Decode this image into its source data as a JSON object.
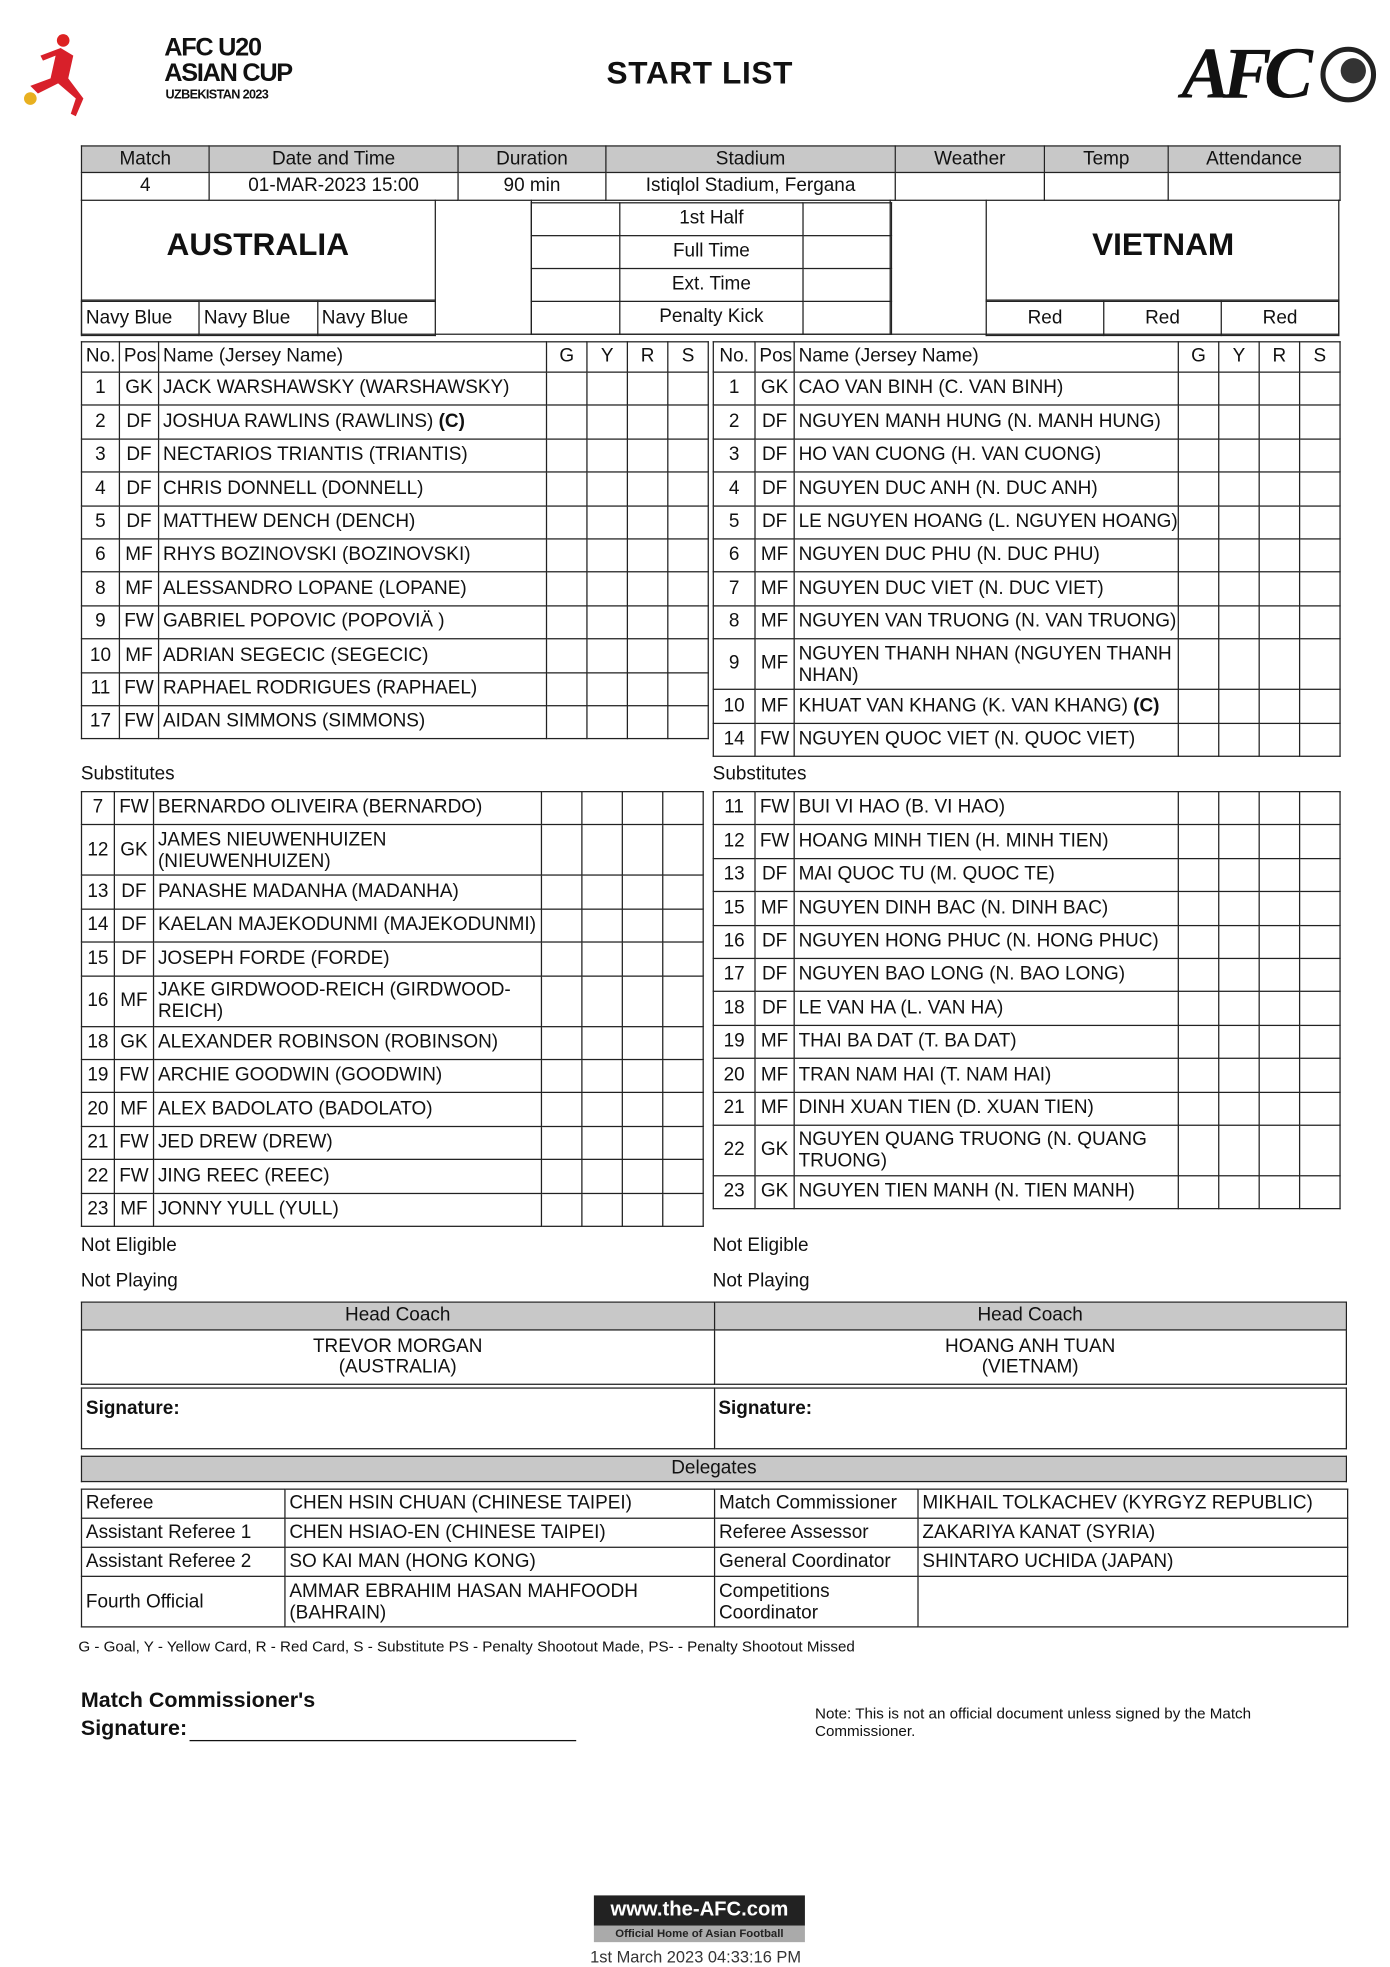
{
  "header": {
    "logo_left": {
      "line1": "AFC U20",
      "line2": "ASIAN CUP",
      "line3": "UZBEKISTAN 2023"
    },
    "title": "START LIST",
    "logo_right": "AFC"
  },
  "match_info": {
    "headers": [
      "Match",
      "Date and Time",
      "Duration",
      "Stadium",
      "Weather",
      "Temp",
      "Attendance"
    ],
    "values": [
      "4",
      "01-MAR-2023 15:00",
      "90 min",
      "Istiqlol Stadium, Fergana",
      "",
      "",
      ""
    ]
  },
  "score": {
    "periods": [
      "1st Half",
      "Full Time",
      "Ext. Time",
      "Penalty Kick"
    ]
  },
  "home": {
    "name": "AUSTRALIA",
    "colors": [
      "Navy Blue",
      "Navy Blue",
      "Navy Blue"
    ]
  },
  "away": {
    "name": "VIETNAM",
    "colors": [
      "Red",
      "Red",
      "Red"
    ]
  },
  "player_headers": [
    "No.",
    "Pos",
    "Name (Jersey Name)",
    "G",
    "Y",
    "R",
    "S"
  ],
  "captain_mark": "(C)",
  "home_starters": [
    {
      "no": "1",
      "pos": "GK",
      "name": "JACK WARSHAWSKY (WARSHAWSKY)"
    },
    {
      "no": "2",
      "pos": "DF",
      "name": "JOSHUA RAWLINS (RAWLINS)",
      "captain": true
    },
    {
      "no": "3",
      "pos": "DF",
      "name": "NECTARIOS TRIANTIS (TRIANTIS)"
    },
    {
      "no": "4",
      "pos": "DF",
      "name": "CHRIS DONNELL (DONNELL)"
    },
    {
      "no": "5",
      "pos": "DF",
      "name": "MATTHEW DENCH (DENCH)"
    },
    {
      "no": "6",
      "pos": "MF",
      "name": "RHYS BOZINOVSKI (BOZINOVSKI)"
    },
    {
      "no": "8",
      "pos": "MF",
      "name": "ALESSANDRO LOPANE (LOPANE)"
    },
    {
      "no": "9",
      "pos": "FW",
      "name": "GABRIEL POPOVIC (POPOVIÄ  )"
    },
    {
      "no": "10",
      "pos": "MF",
      "name": "ADRIAN SEGECIC (SEGECIC)"
    },
    {
      "no": "11",
      "pos": "FW",
      "name": "RAPHAEL RODRIGUES (RAPHAEL)"
    },
    {
      "no": "17",
      "pos": "FW",
      "name": "AIDAN SIMMONS (SIMMONS)"
    }
  ],
  "away_starters": [
    {
      "no": "1",
      "pos": "GK",
      "name": "CAO VAN BINH (C. VAN BINH)"
    },
    {
      "no": "2",
      "pos": "DF",
      "name": "NGUYEN MANH HUNG (N. MANH HUNG)"
    },
    {
      "no": "3",
      "pos": "DF",
      "name": "HO VAN CUONG (H. VAN CUONG)"
    },
    {
      "no": "4",
      "pos": "DF",
      "name": "NGUYEN DUC ANH (N. DUC ANH)"
    },
    {
      "no": "5",
      "pos": "DF",
      "name": "LE NGUYEN HOANG (L. NGUYEN HOANG)"
    },
    {
      "no": "6",
      "pos": "MF",
      "name": "NGUYEN DUC PHU (N. DUC PHU)"
    },
    {
      "no": "7",
      "pos": "MF",
      "name": "NGUYEN DUC VIET (N. DUC VIET)"
    },
    {
      "no": "8",
      "pos": "MF",
      "name": "NGUYEN VAN TRUONG (N. VAN TRUONG)"
    },
    {
      "no": "9",
      "pos": "MF",
      "name": "NGUYEN THANH NHAN (NGUYEN THANH NHAN)",
      "tall": true
    },
    {
      "no": "10",
      "pos": "MF",
      "name": "KHUAT VAN KHANG (K. VAN KHANG)",
      "captain": true
    },
    {
      "no": "14",
      "pos": "FW",
      "name": "NGUYEN QUOC VIET (N. QUOC VIET)"
    }
  ],
  "substitutes_label": "Substitutes",
  "home_subs": [
    {
      "no": "7",
      "pos": "FW",
      "name": "BERNARDO OLIVEIRA (BERNARDO)"
    },
    {
      "no": "12",
      "pos": "GK",
      "name": "JAMES NIEUWENHUIZEN (NIEUWENHUIZEN)",
      "tall": true
    },
    {
      "no": "13",
      "pos": "DF",
      "name": "PANASHE MADANHA (MADANHA)"
    },
    {
      "no": "14",
      "pos": "DF",
      "name": "KAELAN MAJEKODUNMI (MAJEKODUNMI)"
    },
    {
      "no": "15",
      "pos": "DF",
      "name": "JOSEPH FORDE (FORDE)"
    },
    {
      "no": "16",
      "pos": "MF",
      "name": "JAKE GIRDWOOD-REICH (GIRDWOOD-REICH)",
      "tall": true
    },
    {
      "no": "18",
      "pos": "GK",
      "name": "ALEXANDER ROBINSON (ROBINSON)"
    },
    {
      "no": "19",
      "pos": "FW",
      "name": "ARCHIE GOODWIN (GOODWIN)"
    },
    {
      "no": "20",
      "pos": "MF",
      "name": "ALEX BADOLATO (BADOLATO)"
    },
    {
      "no": "21",
      "pos": "FW",
      "name": "JED DREW (DREW)"
    },
    {
      "no": "22",
      "pos": "FW",
      "name": "JING REEC (REEC)"
    },
    {
      "no": "23",
      "pos": "MF",
      "name": "JONNY YULL (YULL)"
    }
  ],
  "away_subs": [
    {
      "no": "11",
      "pos": "FW",
      "name": "BUI VI HAO (B. VI HAO)"
    },
    {
      "no": "12",
      "pos": "FW",
      "name": "HOANG MINH TIEN (H. MINH TIEN)"
    },
    {
      "no": "13",
      "pos": "DF",
      "name": "MAI QUOC TU (M. QUOC TE)"
    },
    {
      "no": "15",
      "pos": "MF",
      "name": "NGUYEN DINH BAC (N. DINH BAC)"
    },
    {
      "no": "16",
      "pos": "DF",
      "name": "NGUYEN HONG PHUC (N. HONG PHUC)"
    },
    {
      "no": "17",
      "pos": "DF",
      "name": "NGUYEN BAO LONG (N. BAO LONG)"
    },
    {
      "no": "18",
      "pos": "DF",
      "name": "LE VAN HA (L. VAN HA)"
    },
    {
      "no": "19",
      "pos": "MF",
      "name": "THAI BA DAT (T. BA DAT)"
    },
    {
      "no": "20",
      "pos": "MF",
      "name": "TRAN NAM HAI (T. NAM HAI)"
    },
    {
      "no": "21",
      "pos": "MF",
      "name": "DINH XUAN TIEN (D. XUAN TIEN)"
    },
    {
      "no": "22",
      "pos": "GK",
      "name": "NGUYEN QUANG TRUONG (N. QUANG TRUONG)",
      "tall": true
    },
    {
      "no": "23",
      "pos": "GK",
      "name": "NGUYEN TIEN MANH (N. TIEN MANH)"
    }
  ],
  "not_eligible_label": "Not Eligible",
  "not_playing_label": "Not Playing",
  "coaches": {
    "label": "Head Coach",
    "home_name": "TREVOR MORGAN",
    "home_country": "(AUSTRALIA)",
    "away_name": "HOANG ANH TUAN",
    "away_country": "(VIETNAM)"
  },
  "signature_label": "Signature:",
  "delegates": {
    "title": "Delegates",
    "rows": [
      [
        "Referee",
        "CHEN HSIN CHUAN (CHINESE TAIPEI)",
        "Match Commissioner",
        "MIKHAIL TOLKACHEV (KYRGYZ REPUBLIC)"
      ],
      [
        "Assistant Referee 1",
        "CHEN HSIAO-EN (CHINESE TAIPEI)",
        "Referee Assessor",
        "ZAKARIYA KANAT (SYRIA)"
      ],
      [
        "Assistant Referee 2",
        "SO KAI MAN (HONG KONG)",
        "General Coordinator",
        "SHINTARO UCHIDA (JAPAN)"
      ],
      [
        "Fourth Official",
        "AMMAR EBRAHIM HASAN MAHFOODH (BAHRAIN)",
        "Competitions Coordinator",
        ""
      ]
    ]
  },
  "legend": "G - Goal, Y - Yellow Card, R - Red Card, S - Substitute PS - Penalty Shootout Made, PS- - Penalty Shootout Missed",
  "commissioner_signature": {
    "line1": "Match Commissioner's",
    "line2": "Signature:"
  },
  "note": "Note: This is not an official document unless signed by the Match Commissioner.",
  "footer": {
    "site": "www.the-AFC.com",
    "tagline": "Official Home of Asian Football",
    "timestamp": "1st March 2023 04:33:16 PM"
  }
}
